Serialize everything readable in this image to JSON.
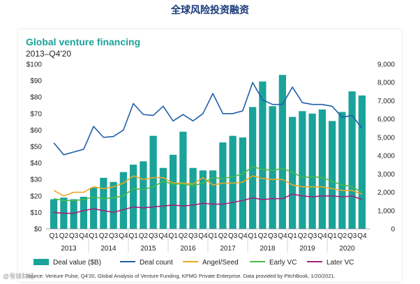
{
  "page_title": "全球风险投资融资",
  "watermark": "@雪球财经",
  "source": "Source: Venture Pulse, Q4'20, Global Analysis of Venture Funding, KPMG Private Enterprise. Data provided by PitchBook, 1/20/2021.",
  "colors": {
    "bar": "#1aa39a",
    "deal_count": "#1f5fa8",
    "angel": "#e8a825",
    "early": "#4db848",
    "later": "#a0227a",
    "title": "#1aa39a"
  },
  "chart_data": {
    "type": "bar",
    "title": "Global venture financing",
    "subtitle": "2013–Q4'20",
    "categories": [
      "Q1",
      "Q2",
      "Q3",
      "Q4",
      "Q1",
      "Q2",
      "Q3",
      "Q4",
      "Q1",
      "Q2",
      "Q3",
      "Q4",
      "Q1",
      "Q2",
      "Q3",
      "Q4",
      "Q1",
      "Q2",
      "Q3",
      "Q4",
      "Q1",
      "Q2",
      "Q3",
      "Q4",
      "Q1",
      "Q2",
      "Q3",
      "Q4",
      "Q1",
      "Q2",
      "Q3",
      "Q4"
    ],
    "years": [
      "2013",
      "2014",
      "2015",
      "2016",
      "2017",
      "2018",
      "2019",
      "2020"
    ],
    "ylim": [
      0,
      100
    ],
    "y2lim": [
      0,
      9000
    ],
    "yticks": [
      "$0",
      "$10",
      "$20",
      "$30",
      "$40",
      "$50",
      "$60",
      "$70",
      "$80",
      "$90",
      "$100"
    ],
    "y2ticks": [
      "0",
      "1,000",
      "2,000",
      "3,000",
      "4,000",
      "5,000",
      "6,000",
      "7,000",
      "8,000",
      "9,000"
    ],
    "series": [
      {
        "name": "Deal value ($B)",
        "kind": "bar",
        "axis": "left",
        "values": [
          18,
          19,
          18,
          19.5,
          25,
          31,
          28.5,
          34.5,
          39,
          41,
          56.5,
          37,
          45,
          59,
          37,
          35.5,
          35.5,
          52.5,
          56.5,
          55.5,
          74,
          89.5,
          74.5,
          93.5,
          68,
          71.5,
          70,
          72.5,
          65.5,
          71,
          83.5,
          81
        ]
      },
      {
        "name": "Deal count",
        "kind": "line",
        "axis": "right",
        "values": [
          4700,
          4050,
          4200,
          4350,
          5600,
          5000,
          5050,
          5400,
          6850,
          6250,
          6200,
          6700,
          5900,
          6250,
          5900,
          6300,
          7400,
          6300,
          6300,
          6450,
          8000,
          7050,
          6800,
          6800,
          7750,
          6900,
          6800,
          6800,
          6700,
          6100,
          6200,
          5500
        ]
      },
      {
        "name": "Angel/Seed",
        "kind": "line",
        "axis": "right",
        "values": [
          2100,
          1800,
          2000,
          2000,
          2300,
          2200,
          2300,
          2500,
          2900,
          2700,
          2800,
          2800,
          2500,
          2500,
          2450,
          2800,
          2400,
          2500,
          2500,
          2550,
          2900,
          2750,
          2700,
          2700,
          2400,
          2300,
          2300,
          2300,
          2200,
          2100,
          2100,
          1900
        ]
      },
      {
        "name": "Early VC",
        "kind": "line",
        "axis": "right",
        "values": [
          1650,
          1550,
          1550,
          1600,
          1750,
          1650,
          1700,
          1800,
          2200,
          2150,
          2300,
          2600,
          2450,
          2450,
          2350,
          2500,
          2800,
          2750,
          2850,
          3000,
          3400,
          3250,
          3200,
          3300,
          3100,
          2800,
          2850,
          2800,
          2600,
          2400,
          2300,
          2000
        ]
      },
      {
        "name": "Later VC",
        "kind": "line",
        "axis": "right",
        "values": [
          900,
          850,
          850,
          1000,
          1100,
          1000,
          900,
          1050,
          1200,
          1150,
          1200,
          1250,
          1300,
          1250,
          1300,
          1400,
          1350,
          1350,
          1450,
          1550,
          1700,
          1600,
          1650,
          1650,
          1900,
          1800,
          1750,
          1800,
          1800,
          1750,
          1800,
          1600
        ]
      }
    ],
    "legend": [
      "Deal value ($B)",
      "Deal count",
      "Angel/Seed",
      "Early VC",
      "Later VC"
    ]
  }
}
